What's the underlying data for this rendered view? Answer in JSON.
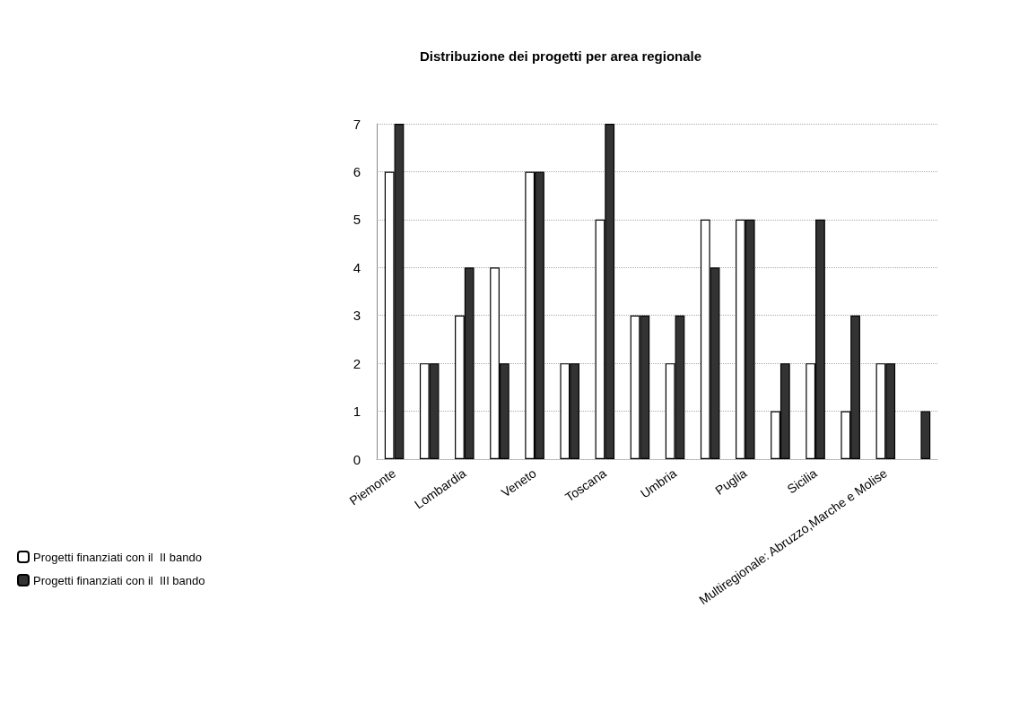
{
  "chart_data": {
    "type": "bar",
    "title": "Distribuzione dei progetti per area regionale",
    "categories": [
      "Piemonte",
      null,
      "Lombardia",
      null,
      "Veneto",
      null,
      "Toscana",
      null,
      "Umbria",
      null,
      "Puglia",
      null,
      "Sicilia",
      null,
      "Multiregionale: Abruzzo,Marche e Molise",
      null
    ],
    "series": [
      {
        "name": "Progetti finanziati con il  II bando",
        "color": "#ffffff",
        "values": [
          6,
          2,
          3,
          4,
          6,
          2,
          5,
          3,
          2,
          5,
          5,
          1,
          2,
          1,
          2,
          0
        ]
      },
      {
        "name": "Progetti finanziati con il  III bando",
        "color": "#333333",
        "values": [
          7,
          2,
          4,
          2,
          6,
          2,
          7,
          3,
          3,
          4,
          5,
          2,
          5,
          3,
          2,
          1
        ]
      }
    ],
    "ylim": [
      0,
      7
    ],
    "yticks": [
      0,
      1,
      2,
      3,
      4,
      5,
      6,
      7
    ],
    "grid": "y",
    "legend": "bottom left"
  }
}
